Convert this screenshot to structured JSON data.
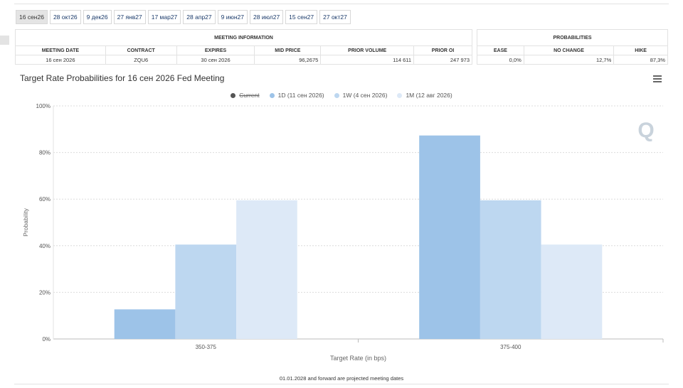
{
  "tabs": [
    "16 сен26",
    "28 окт26",
    "9 дек26",
    "27 янв27",
    "17 мар27",
    "28 апр27",
    "9 июн27",
    "28 июл27",
    "15 сен27",
    "27 окт27"
  ],
  "active_tab": 0,
  "meeting_info": {
    "title": "MEETING INFORMATION",
    "headers": [
      "MEETING DATE",
      "CONTRACT",
      "EXPIRES",
      "MID PRICE",
      "PRIOR VOLUME",
      "PRIOR OI"
    ],
    "values": [
      "16 сен 2026",
      "ZQU6",
      "30 сен 2026",
      "96,2675",
      "114 611",
      "247 973"
    ]
  },
  "probabilities": {
    "title": "PROBABILITIES",
    "headers": [
      "EASE",
      "NO CHANGE",
      "HIKE"
    ],
    "values": [
      "0,0%",
      "12,7%",
      "87,3%"
    ]
  },
  "chart": {
    "title": "Target Rate Probabilities for 16 сен 2026 Fed Meeting",
    "watermark": "Q",
    "menu_icon": "hamburger-menu-icon"
  },
  "chart_data": {
    "type": "bar",
    "title": "Target Rate Probabilities for 16 сен 2026 Fed Meeting",
    "categories": [
      "350-375",
      "375-400"
    ],
    "xlabel": "Target Rate (in bps)",
    "ylabel": "Probability",
    "ylim": [
      0,
      100
    ],
    "yticks": [
      "0%",
      "20%",
      "40%",
      "60%",
      "80%",
      "100%"
    ],
    "grid": true,
    "legend_position": "top-center",
    "series": [
      {
        "name": "Current",
        "values": [
          0,
          0
        ],
        "color": "#555555",
        "hidden": true
      },
      {
        "name": "1D (11 сен 2026)",
        "values": [
          12.7,
          87.3
        ],
        "color": "#9dc3e8"
      },
      {
        "name": "1W (4 сен 2026)",
        "values": [
          40.5,
          59.5
        ],
        "color": "#bdd7f0"
      },
      {
        "name": "1M (12 авг 2026)",
        "values": [
          59.5,
          40.5
        ],
        "color": "#dde9f7"
      }
    ]
  },
  "footer_note": "01.01.2028 and forward are projected meeting dates"
}
